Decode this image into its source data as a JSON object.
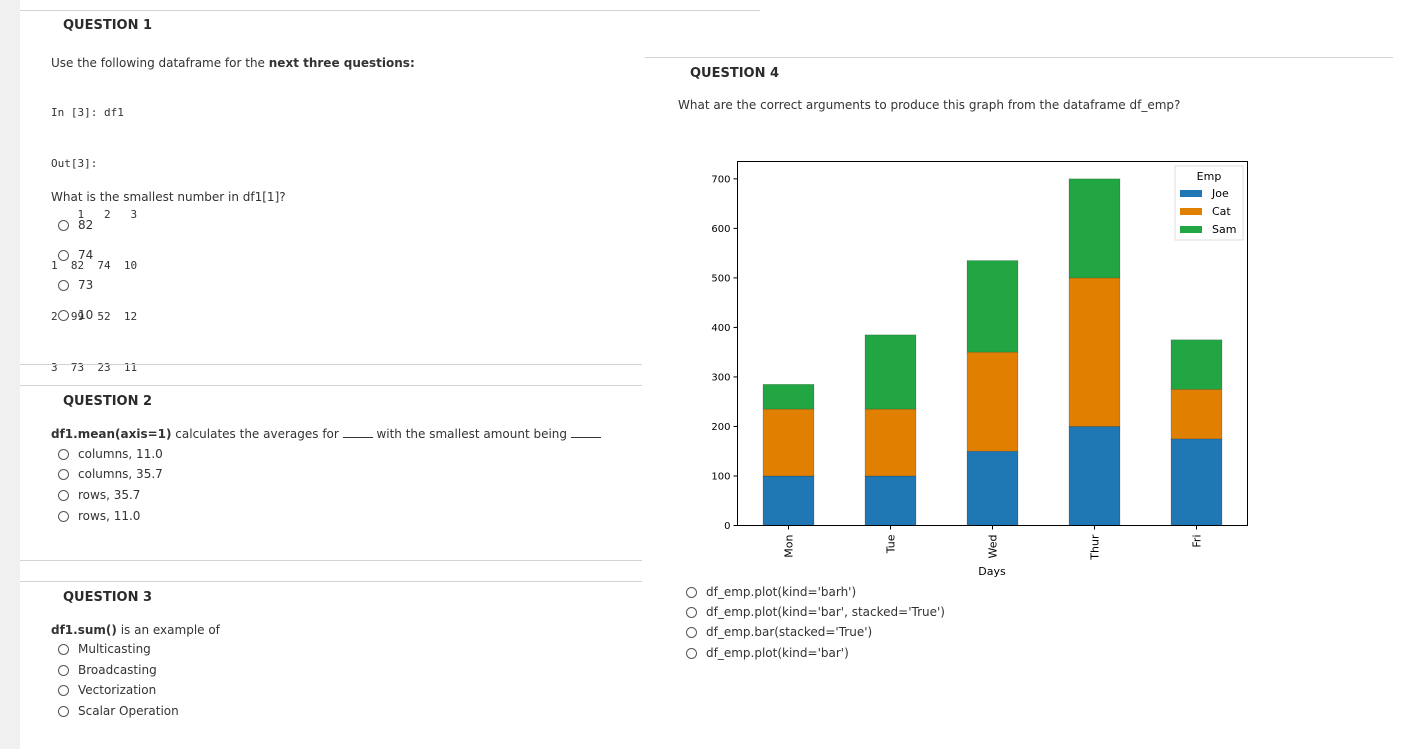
{
  "q1": {
    "title": "QUESTION 1",
    "intro_prefix": "Use the following dataframe for the ",
    "intro_bold": "next three questions:",
    "code_lines": [
      "In [3]: df1",
      "Out[3]:",
      "    1   2   3",
      "1  82  74  10",
      "2  99  52  12",
      "3  73  23  11"
    ],
    "prompt": "What is the smallest number in df1[1]?",
    "options": [
      "82",
      "74",
      "73",
      "10"
    ]
  },
  "q2": {
    "title": "QUESTION 2",
    "prompt_bold": "df1.mean(axis=1)",
    "prompt_mid": " calculates the averages for ",
    "prompt_mid2": " with the smallest amount being ",
    "options": [
      "columns, 11.0",
      "columns, 35.7",
      "rows, 35.7",
      "rows, 11.0"
    ]
  },
  "q3": {
    "title": "QUESTION 3",
    "prompt_bold": "df1.sum()",
    "prompt_rest": " is an example of",
    "options": [
      "Multicasting",
      "Broadcasting",
      "Vectorization",
      "Scalar Operation"
    ]
  },
  "q4": {
    "title": "QUESTION 4",
    "prompt": "What are the correct arguments to produce this graph from the dataframe df_emp?",
    "options": [
      "df_emp.plot(kind='barh')",
      "df_emp.plot(kind='bar', stacked='True')",
      "df_emp.bar(stacked='True')",
      "df_emp.plot(kind='bar')"
    ]
  },
  "chart_data": {
    "type": "bar",
    "stacked": true,
    "categories": [
      "Mon",
      "Tue",
      "Wed",
      "Thur",
      "Fri"
    ],
    "series": [
      {
        "name": "Joe",
        "values": [
          100,
          100,
          150,
          200,
          175
        ],
        "color": "#1f77b4"
      },
      {
        "name": "Cat",
        "values": [
          135,
          135,
          200,
          300,
          100
        ],
        "color": "#e07f00"
      },
      {
        "name": "Sam",
        "values": [
          50,
          150,
          185,
          200,
          100
        ],
        "color": "#22a543"
      }
    ],
    "xlabel": "Days",
    "ylabel": "",
    "ylim": [
      0,
      735
    ],
    "yticks": [
      0,
      100,
      200,
      300,
      400,
      500,
      600,
      700
    ],
    "legend_title": "Emp",
    "legend_position": "top-right",
    "grid": false
  }
}
